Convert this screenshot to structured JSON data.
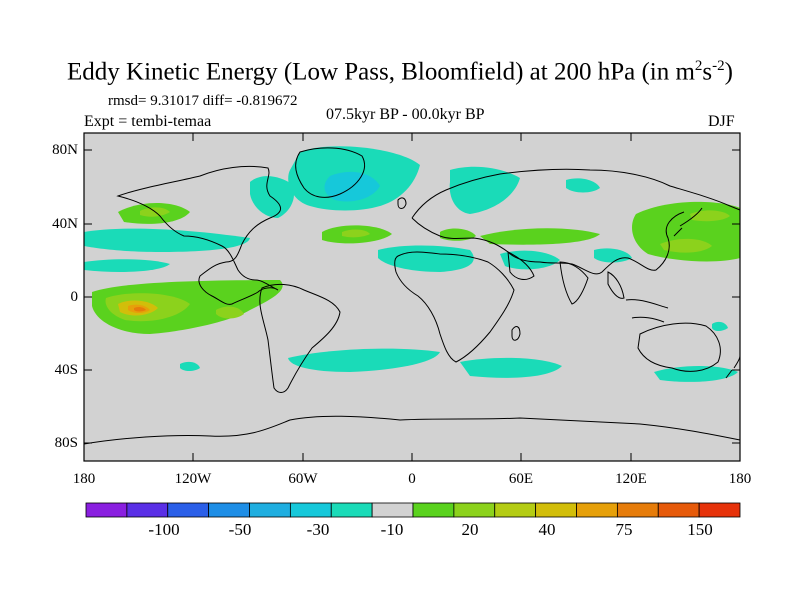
{
  "title": {
    "main": "Eddy Kinetic Energy (Low Pass, Bloomfield) at 200 hPa (in m",
    "sup1": "2",
    "mid": "s",
    "sup2": "-2",
    "end": ")"
  },
  "stats": "rmsd= 9.31017 diff= -0.819672",
  "expt": "Expt = tembi-temaa",
  "period": "07.5kyr BP - 00.0kyr BP",
  "season": "DJF",
  "axes": {
    "y_labels": [
      "80N",
      "40N",
      "0",
      "40S",
      "80S"
    ],
    "x_labels": [
      "180",
      "120W",
      "60W",
      "0",
      "60E",
      "120E",
      "180"
    ]
  },
  "colorbar": {
    "colors": [
      "#8a1fe0",
      "#5a2fe6",
      "#2b5fe8",
      "#1e8ee6",
      "#1faee0",
      "#16c8da",
      "#1adbb8",
      "#d2d2d2",
      "#5ad21e",
      "#8cd21c",
      "#b4cc14",
      "#d2be0a",
      "#e6a00a",
      "#e67c0a",
      "#e65a0a",
      "#e6320a"
    ],
    "labels": [
      "-100",
      "-50",
      "-30",
      "-10",
      "20",
      "40",
      "75",
      "150"
    ]
  },
  "colors": {
    "land_bg": "#d2d2d2",
    "coast": "#000000"
  }
}
